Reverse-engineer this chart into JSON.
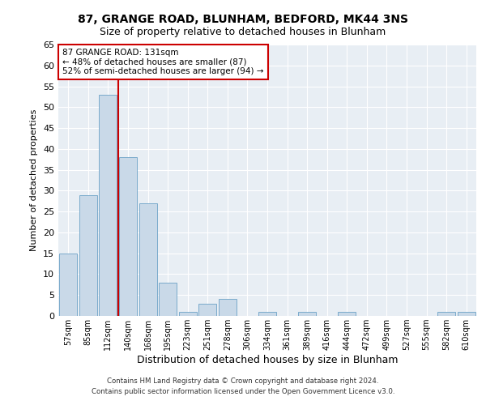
{
  "title": "87, GRANGE ROAD, BLUNHAM, BEDFORD, MK44 3NS",
  "subtitle": "Size of property relative to detached houses in Blunham",
  "xlabel": "Distribution of detached houses by size in Blunham",
  "ylabel": "Number of detached properties",
  "categories": [
    "57sqm",
    "85sqm",
    "112sqm",
    "140sqm",
    "168sqm",
    "195sqm",
    "223sqm",
    "251sqm",
    "278sqm",
    "306sqm",
    "334sqm",
    "361sqm",
    "389sqm",
    "416sqm",
    "444sqm",
    "472sqm",
    "499sqm",
    "527sqm",
    "555sqm",
    "582sqm",
    "610sqm"
  ],
  "values": [
    15,
    29,
    53,
    38,
    27,
    8,
    1,
    3,
    4,
    0,
    1,
    0,
    1,
    0,
    1,
    0,
    0,
    0,
    0,
    1,
    1
  ],
  "bar_color": "#c9d9e8",
  "bar_edge_color": "#7aaacb",
  "vline_color": "#cc0000",
  "annotation_text": "87 GRANGE ROAD: 131sqm\n← 48% of detached houses are smaller (87)\n52% of semi-detached houses are larger (94) →",
  "annotation_box_color": "#ffffff",
  "annotation_box_edge_color": "#cc0000",
  "ylim": [
    0,
    65
  ],
  "yticks": [
    0,
    5,
    10,
    15,
    20,
    25,
    30,
    35,
    40,
    45,
    50,
    55,
    60,
    65
  ],
  "footer": "Contains HM Land Registry data © Crown copyright and database right 2024.\nContains public sector information licensed under the Open Government Licence v3.0.",
  "bg_color": "#e8eef4",
  "title_fontsize": 10,
  "subtitle_fontsize": 9,
  "ylabel_fontsize": 8,
  "xlabel_fontsize": 9
}
